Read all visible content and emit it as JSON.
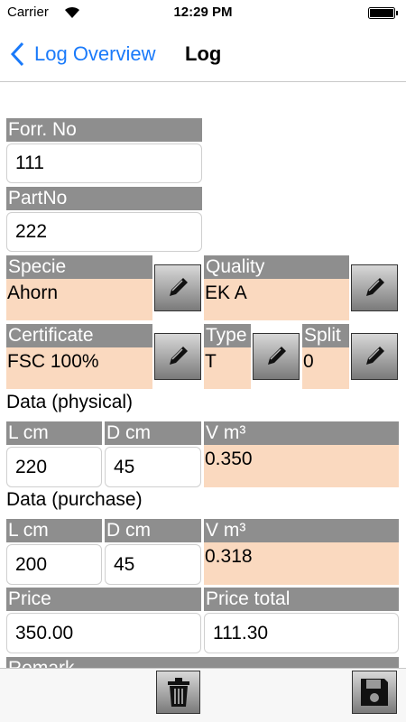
{
  "status_bar": {
    "carrier": "Carrier",
    "time": "12:29 PM"
  },
  "nav": {
    "back": "Log Overview",
    "title": "Log"
  },
  "form": {
    "forr_no": {
      "label": "Forr. No",
      "value": "111"
    },
    "part_no": {
      "label": "PartNo",
      "value": "222"
    },
    "specie": {
      "label": "Specie",
      "value": "Ahorn"
    },
    "quality": {
      "label": "Quality",
      "value": "EK A"
    },
    "certificate": {
      "label": "Certificate",
      "value": "FSC 100%"
    },
    "type": {
      "label": "Type",
      "value": "T"
    },
    "split": {
      "label": "Split",
      "value": "0"
    },
    "physical": {
      "heading": "Data (physical)",
      "l_label": "L cm",
      "l_value": "220",
      "d_label": "D cm",
      "d_value": "45",
      "v_label": "V m³",
      "v_value": "0.350"
    },
    "purchase": {
      "heading": "Data (purchase)",
      "l_label": "L cm",
      "l_value": "200",
      "d_label": "D cm",
      "d_value": "45",
      "v_label": "V m³",
      "v_value": "0.318"
    },
    "price": {
      "label": "Price",
      "value": "350.00"
    },
    "price_total": {
      "label": "Price total",
      "value": "111.30"
    },
    "remark": {
      "label": "Remark"
    }
  }
}
